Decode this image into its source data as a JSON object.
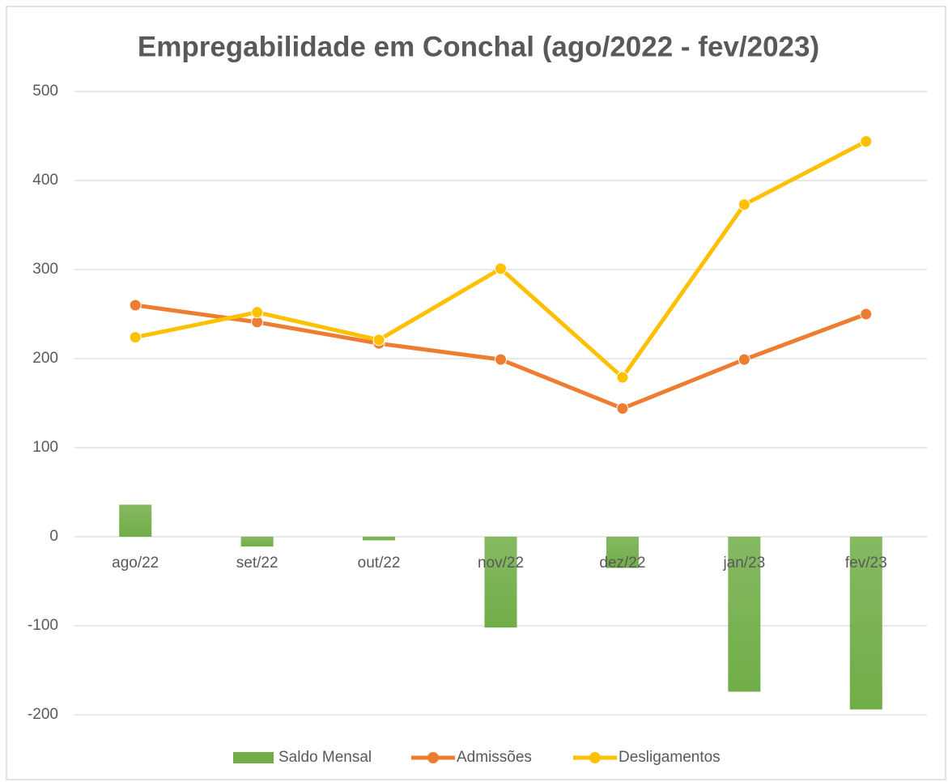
{
  "chart_data": {
    "type": "combo",
    "title": "Empregabilidade em Conchal (ago/2022 - fev/2023)",
    "categories": [
      "ago/22",
      "set/22",
      "out/22",
      "nov/22",
      "dez/22",
      "jan/23",
      "fev/23"
    ],
    "series": [
      {
        "name": "Saldo Mensal",
        "type": "bar",
        "color": "#70ad47",
        "values": [
          36,
          -11,
          -4,
          -102,
          -35,
          -174,
          -194
        ]
      },
      {
        "name": "Admissões",
        "type": "line",
        "color": "#ed7d31",
        "values": [
          260,
          241,
          217,
          199,
          144,
          199,
          250
        ]
      },
      {
        "name": "Desligamentos",
        "type": "line",
        "color": "#ffc000",
        "values": [
          224,
          252,
          221,
          301,
          179,
          373,
          444
        ]
      }
    ],
    "ylim": [
      -200,
      500
    ],
    "yticks": [
      -200,
      -100,
      0,
      100,
      200,
      300,
      400,
      500
    ],
    "grid": true,
    "legend": "bottom"
  }
}
